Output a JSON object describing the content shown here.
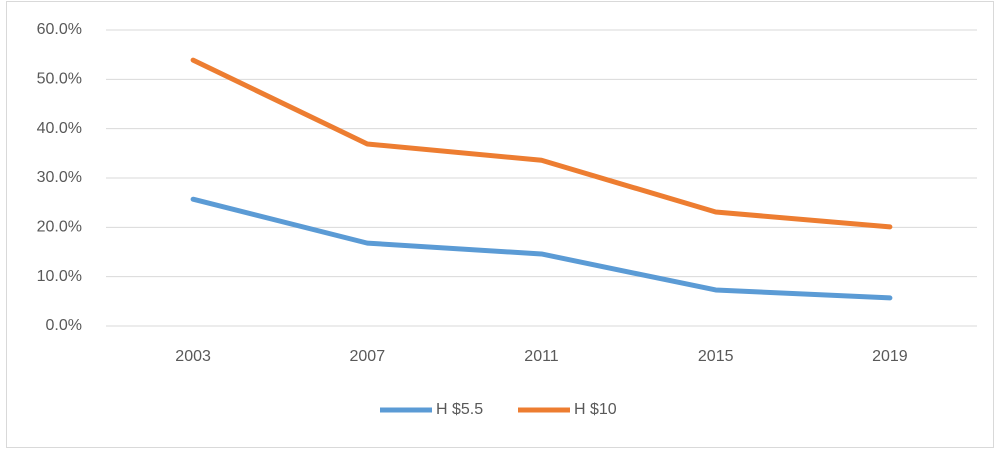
{
  "chart_data": {
    "type": "line",
    "categories": [
      "2003",
      "2007",
      "2011",
      "2015",
      "2019"
    ],
    "series": [
      {
        "name": "H $5.5",
        "color": "#5b9bd5",
        "values": [
          25.7,
          16.8,
          14.6,
          7.3,
          5.7
        ]
      },
      {
        "name": "H $10",
        "color": "#ed7d31",
        "values": [
          53.9,
          36.9,
          33.6,
          23.1,
          20.1
        ]
      }
    ],
    "ylim": [
      0,
      60
    ],
    "yticks": [
      {
        "value": 0,
        "label": "0.0%"
      },
      {
        "value": 10,
        "label": "10.0%"
      },
      {
        "value": 20,
        "label": "20.0%"
      },
      {
        "value": 30,
        "label": "30.0%"
      },
      {
        "value": 40,
        "label": "40.0%"
      },
      {
        "value": 50,
        "label": "50.0%"
      },
      {
        "value": 60,
        "label": "60.0%"
      }
    ],
    "grid": true,
    "legend": "bottom"
  }
}
